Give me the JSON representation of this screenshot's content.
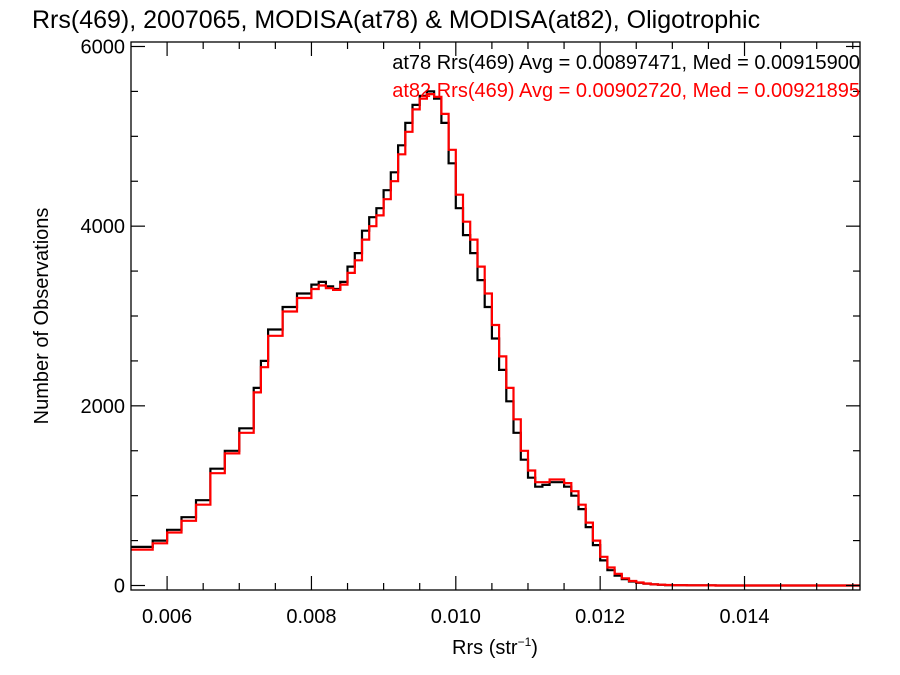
{
  "chart_data": {
    "type": "line",
    "title": "Rrs(469), 2007065, MODISA(at78) & MODISA(at82), Oligotrophic",
    "xlabel": "Rrs (str",
    "xlabel_sup": "−1",
    "xlabel_end": ")",
    "ylabel": "Number of Observations",
    "xlim": [
      0.0055,
      0.0156
    ],
    "ylim": [
      -50,
      6050
    ],
    "x_ticks": [
      0.006,
      0.008,
      0.01,
      0.012,
      0.014
    ],
    "x_tick_labels": [
      "0.006",
      "0.008",
      "0.010",
      "0.012",
      "0.014"
    ],
    "x_minor_step": 0.0005,
    "y_ticks": [
      0,
      2000,
      4000,
      6000
    ],
    "y_tick_labels": [
      "0",
      "2000",
      "4000",
      "6000"
    ],
    "y_minor_step": 500,
    "annotations": [
      {
        "text": "at78 Rrs(469) Avg = 0.00897471, Med = 0.00915900",
        "color": "#000000"
      },
      {
        "text": "at82 Rrs(469) Avg = 0.00902720, Med = 0.00921895",
        "color": "#ff0000"
      }
    ],
    "series": [
      {
        "color": "#000000",
        "step": "histogram",
        "x": [
          0.0055,
          0.0058,
          0.006,
          0.0062,
          0.0064,
          0.0066,
          0.0068,
          0.007,
          0.0072,
          0.0073,
          0.0074,
          0.0076,
          0.0078,
          0.008,
          0.0081,
          0.0082,
          0.0083,
          0.0084,
          0.0085,
          0.0086,
          0.0087,
          0.0088,
          0.0089,
          0.009,
          0.0091,
          0.0092,
          0.0093,
          0.0094,
          0.0095,
          0.0096,
          0.0097,
          0.0098,
          0.0099,
          0.01,
          0.0101,
          0.0102,
          0.0103,
          0.0104,
          0.0105,
          0.0106,
          0.0107,
          0.0108,
          0.0109,
          0.011,
          0.0111,
          0.0112,
          0.0113,
          0.0114,
          0.0115,
          0.0116,
          0.0117,
          0.0118,
          0.0119,
          0.012,
          0.0121,
          0.0122,
          0.0123,
          0.0124,
          0.0125,
          0.0126,
          0.0127,
          0.0128,
          0.0129,
          0.013,
          0.0132,
          0.0134,
          0.0136,
          0.014,
          0.0145,
          0.015,
          0.0156
        ],
        "values": [
          430,
          500,
          620,
          760,
          950,
          1300,
          1500,
          1750,
          2200,
          2500,
          2850,
          3100,
          3250,
          3350,
          3380,
          3330,
          3300,
          3380,
          3550,
          3700,
          3950,
          4100,
          4200,
          4400,
          4600,
          4900,
          5150,
          5350,
          5450,
          5500,
          5420,
          5150,
          4700,
          4200,
          3900,
          3700,
          3400,
          3100,
          2750,
          2400,
          2050,
          1700,
          1400,
          1200,
          1100,
          1120,
          1150,
          1150,
          1100,
          1000,
          850,
          650,
          450,
          280,
          170,
          110,
          70,
          45,
          30,
          20,
          12,
          8,
          5,
          3,
          2,
          1,
          0,
          0,
          0,
          0,
          0
        ]
      },
      {
        "color": "#ff0000",
        "step": "histogram",
        "x": [
          0.0055,
          0.0058,
          0.006,
          0.0062,
          0.0064,
          0.0066,
          0.0068,
          0.007,
          0.0072,
          0.0073,
          0.0074,
          0.0076,
          0.0078,
          0.008,
          0.0081,
          0.0082,
          0.0083,
          0.0084,
          0.0085,
          0.0086,
          0.0087,
          0.0088,
          0.0089,
          0.009,
          0.0091,
          0.0092,
          0.0093,
          0.0094,
          0.0095,
          0.0096,
          0.0097,
          0.0098,
          0.0099,
          0.01,
          0.0101,
          0.0102,
          0.0103,
          0.0104,
          0.0105,
          0.0106,
          0.0107,
          0.0108,
          0.0109,
          0.011,
          0.0111,
          0.0112,
          0.0113,
          0.0114,
          0.0115,
          0.0116,
          0.0117,
          0.0118,
          0.0119,
          0.012,
          0.0121,
          0.0122,
          0.0123,
          0.0124,
          0.0125,
          0.0126,
          0.0127,
          0.0128,
          0.0129,
          0.013,
          0.0132,
          0.0134,
          0.0136,
          0.014,
          0.0145,
          0.015,
          0.0156
        ],
        "values": [
          400,
          470,
          590,
          720,
          900,
          1250,
          1470,
          1700,
          2150,
          2430,
          2780,
          3050,
          3200,
          3300,
          3340,
          3310,
          3290,
          3350,
          3480,
          3620,
          3850,
          4000,
          4120,
          4300,
          4500,
          4800,
          5050,
          5300,
          5420,
          5470,
          5440,
          5250,
          4850,
          4350,
          4050,
          3850,
          3550,
          3250,
          2900,
          2550,
          2200,
          1850,
          1500,
          1280,
          1150,
          1150,
          1180,
          1180,
          1140,
          1050,
          900,
          700,
          500,
          320,
          200,
          130,
          80,
          50,
          33,
          22,
          14,
          9,
          6,
          3,
          2,
          1,
          0,
          0,
          0,
          0,
          0
        ]
      }
    ]
  }
}
